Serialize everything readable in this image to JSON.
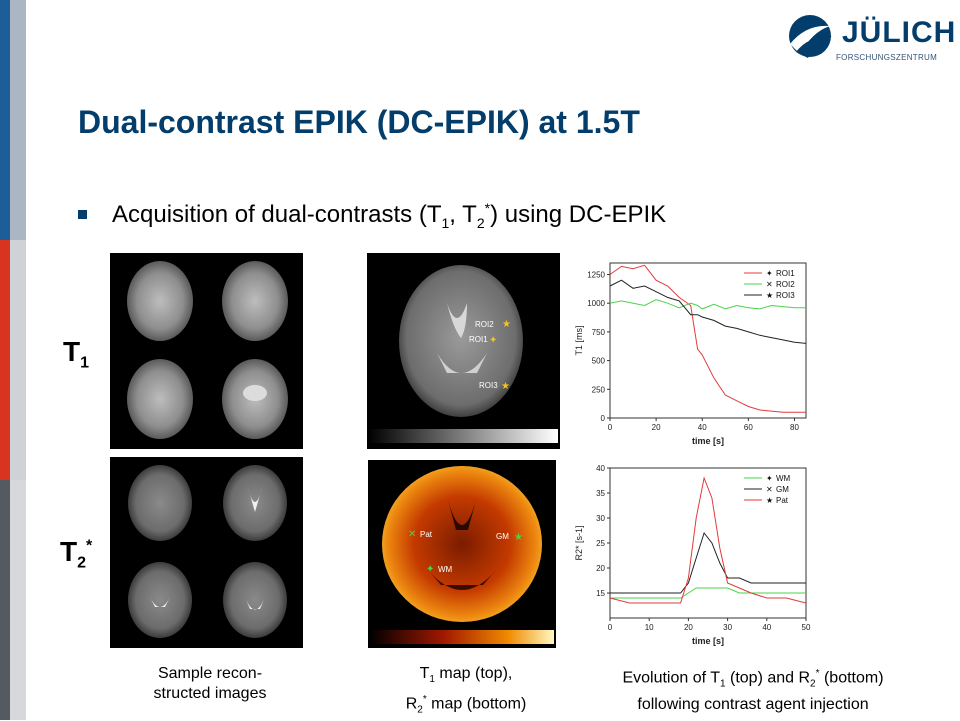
{
  "logo": {
    "name": "JÜLICH",
    "subtitle": "FORSCHUNGSZENTRUM"
  },
  "title": "Dual-contrast EPIK (DC-EPIK) at 1.5T",
  "bullet": {
    "pre": "Acquisition of dual-contrasts (T",
    "sub1": "1",
    "mid": ", T",
    "sub2": "2",
    "sup2": "*",
    "post": ") using DC-EPIK"
  },
  "row_labels": {
    "t1": {
      "main": "T",
      "sub": "1"
    },
    "t2": {
      "main": "T",
      "sub": "2",
      "sup": "*"
    }
  },
  "map_labels": {
    "t1": [
      "ROI2",
      "ROI1",
      "ROI3"
    ],
    "r2": [
      "Pat",
      "GM",
      "WM"
    ]
  },
  "captions": {
    "c1": {
      "line1": "Sample recon-",
      "line2": "structed images"
    },
    "c2": {
      "line1_pre": "T",
      "line1_sub": "1",
      "line1_post": " map (top),",
      "line2_pre": "R",
      "line2_sub": "2",
      "line2_sup": "*",
      "line2_post": " map (bottom)"
    },
    "c3": {
      "line1_pre": "Evolution of T",
      "line1_sub": "1",
      "line1_mid": " (top) and R",
      "line1_sub2": "2",
      "line1_sup2": "*",
      "line1_post": " (bottom)",
      "line2": "following contrast agent injection"
    }
  },
  "colors": {
    "navy": "#023d6b",
    "roi1": "#e23b3b",
    "roi2": "#4ad34a",
    "roi3": "#222222"
  },
  "chart_data": [
    {
      "type": "line",
      "xlabel": "time [s]",
      "ylabel": "T1 [ms]",
      "xlim": [
        0,
        85
      ],
      "ylim": [
        0,
        1350
      ],
      "x_ticks": [
        0,
        20,
        40,
        60,
        80
      ],
      "y_ticks": [
        0,
        250,
        500,
        750,
        1000,
        1250
      ],
      "legend": "top-right",
      "x": [
        0,
        5,
        10,
        15,
        20,
        25,
        30,
        35,
        38,
        40,
        45,
        50,
        55,
        60,
        65,
        70,
        75,
        80,
        85
      ],
      "series": [
        {
          "name": "ROI1",
          "color": "#e23b3b",
          "values": [
            1250,
            1320,
            1300,
            1330,
            1200,
            1150,
            1050,
            980,
            600,
            550,
            350,
            200,
            150,
            100,
            70,
            60,
            50,
            50,
            50
          ]
        },
        {
          "name": "ROI2",
          "color": "#4ad34a",
          "values": [
            1000,
            1020,
            1000,
            980,
            1030,
            1000,
            960,
            1000,
            980,
            950,
            990,
            950,
            980,
            960,
            950,
            980,
            970,
            960,
            960
          ]
        },
        {
          "name": "ROI3",
          "color": "#222222",
          "values": [
            1150,
            1200,
            1130,
            1150,
            1100,
            1050,
            1020,
            900,
            900,
            880,
            850,
            800,
            780,
            750,
            720,
            700,
            680,
            660,
            650
          ]
        }
      ]
    },
    {
      "type": "line",
      "xlabel": "time [s]",
      "ylabel": "R2* [s-1]",
      "xlim": [
        0,
        50
      ],
      "ylim": [
        10,
        40
      ],
      "x_ticks": [
        0,
        10,
        20,
        30,
        40,
        50
      ],
      "y_ticks": [
        15,
        20,
        25,
        30,
        35,
        40
      ],
      "legend": "top-right",
      "x": [
        0,
        5,
        10,
        15,
        18,
        20,
        22,
        24,
        26,
        28,
        30,
        33,
        36,
        40,
        45,
        50
      ],
      "series": [
        {
          "name": "WM",
          "color": "#4ad34a",
          "values": [
            14,
            14,
            14,
            14,
            14,
            15,
            16,
            16,
            16,
            16,
            16,
            15,
            15,
            15,
            15,
            15
          ]
        },
        {
          "name": "GM",
          "color": "#222222",
          "values": [
            15,
            15,
            15,
            15,
            15,
            17,
            22,
            27,
            25,
            21,
            18,
            18,
            17,
            17,
            17,
            17
          ]
        },
        {
          "name": "Pat",
          "color": "#e23b3b",
          "values": [
            14,
            13,
            13,
            13,
            13,
            18,
            30,
            38,
            34,
            24,
            17,
            16,
            15,
            14,
            14,
            13
          ]
        }
      ]
    }
  ]
}
